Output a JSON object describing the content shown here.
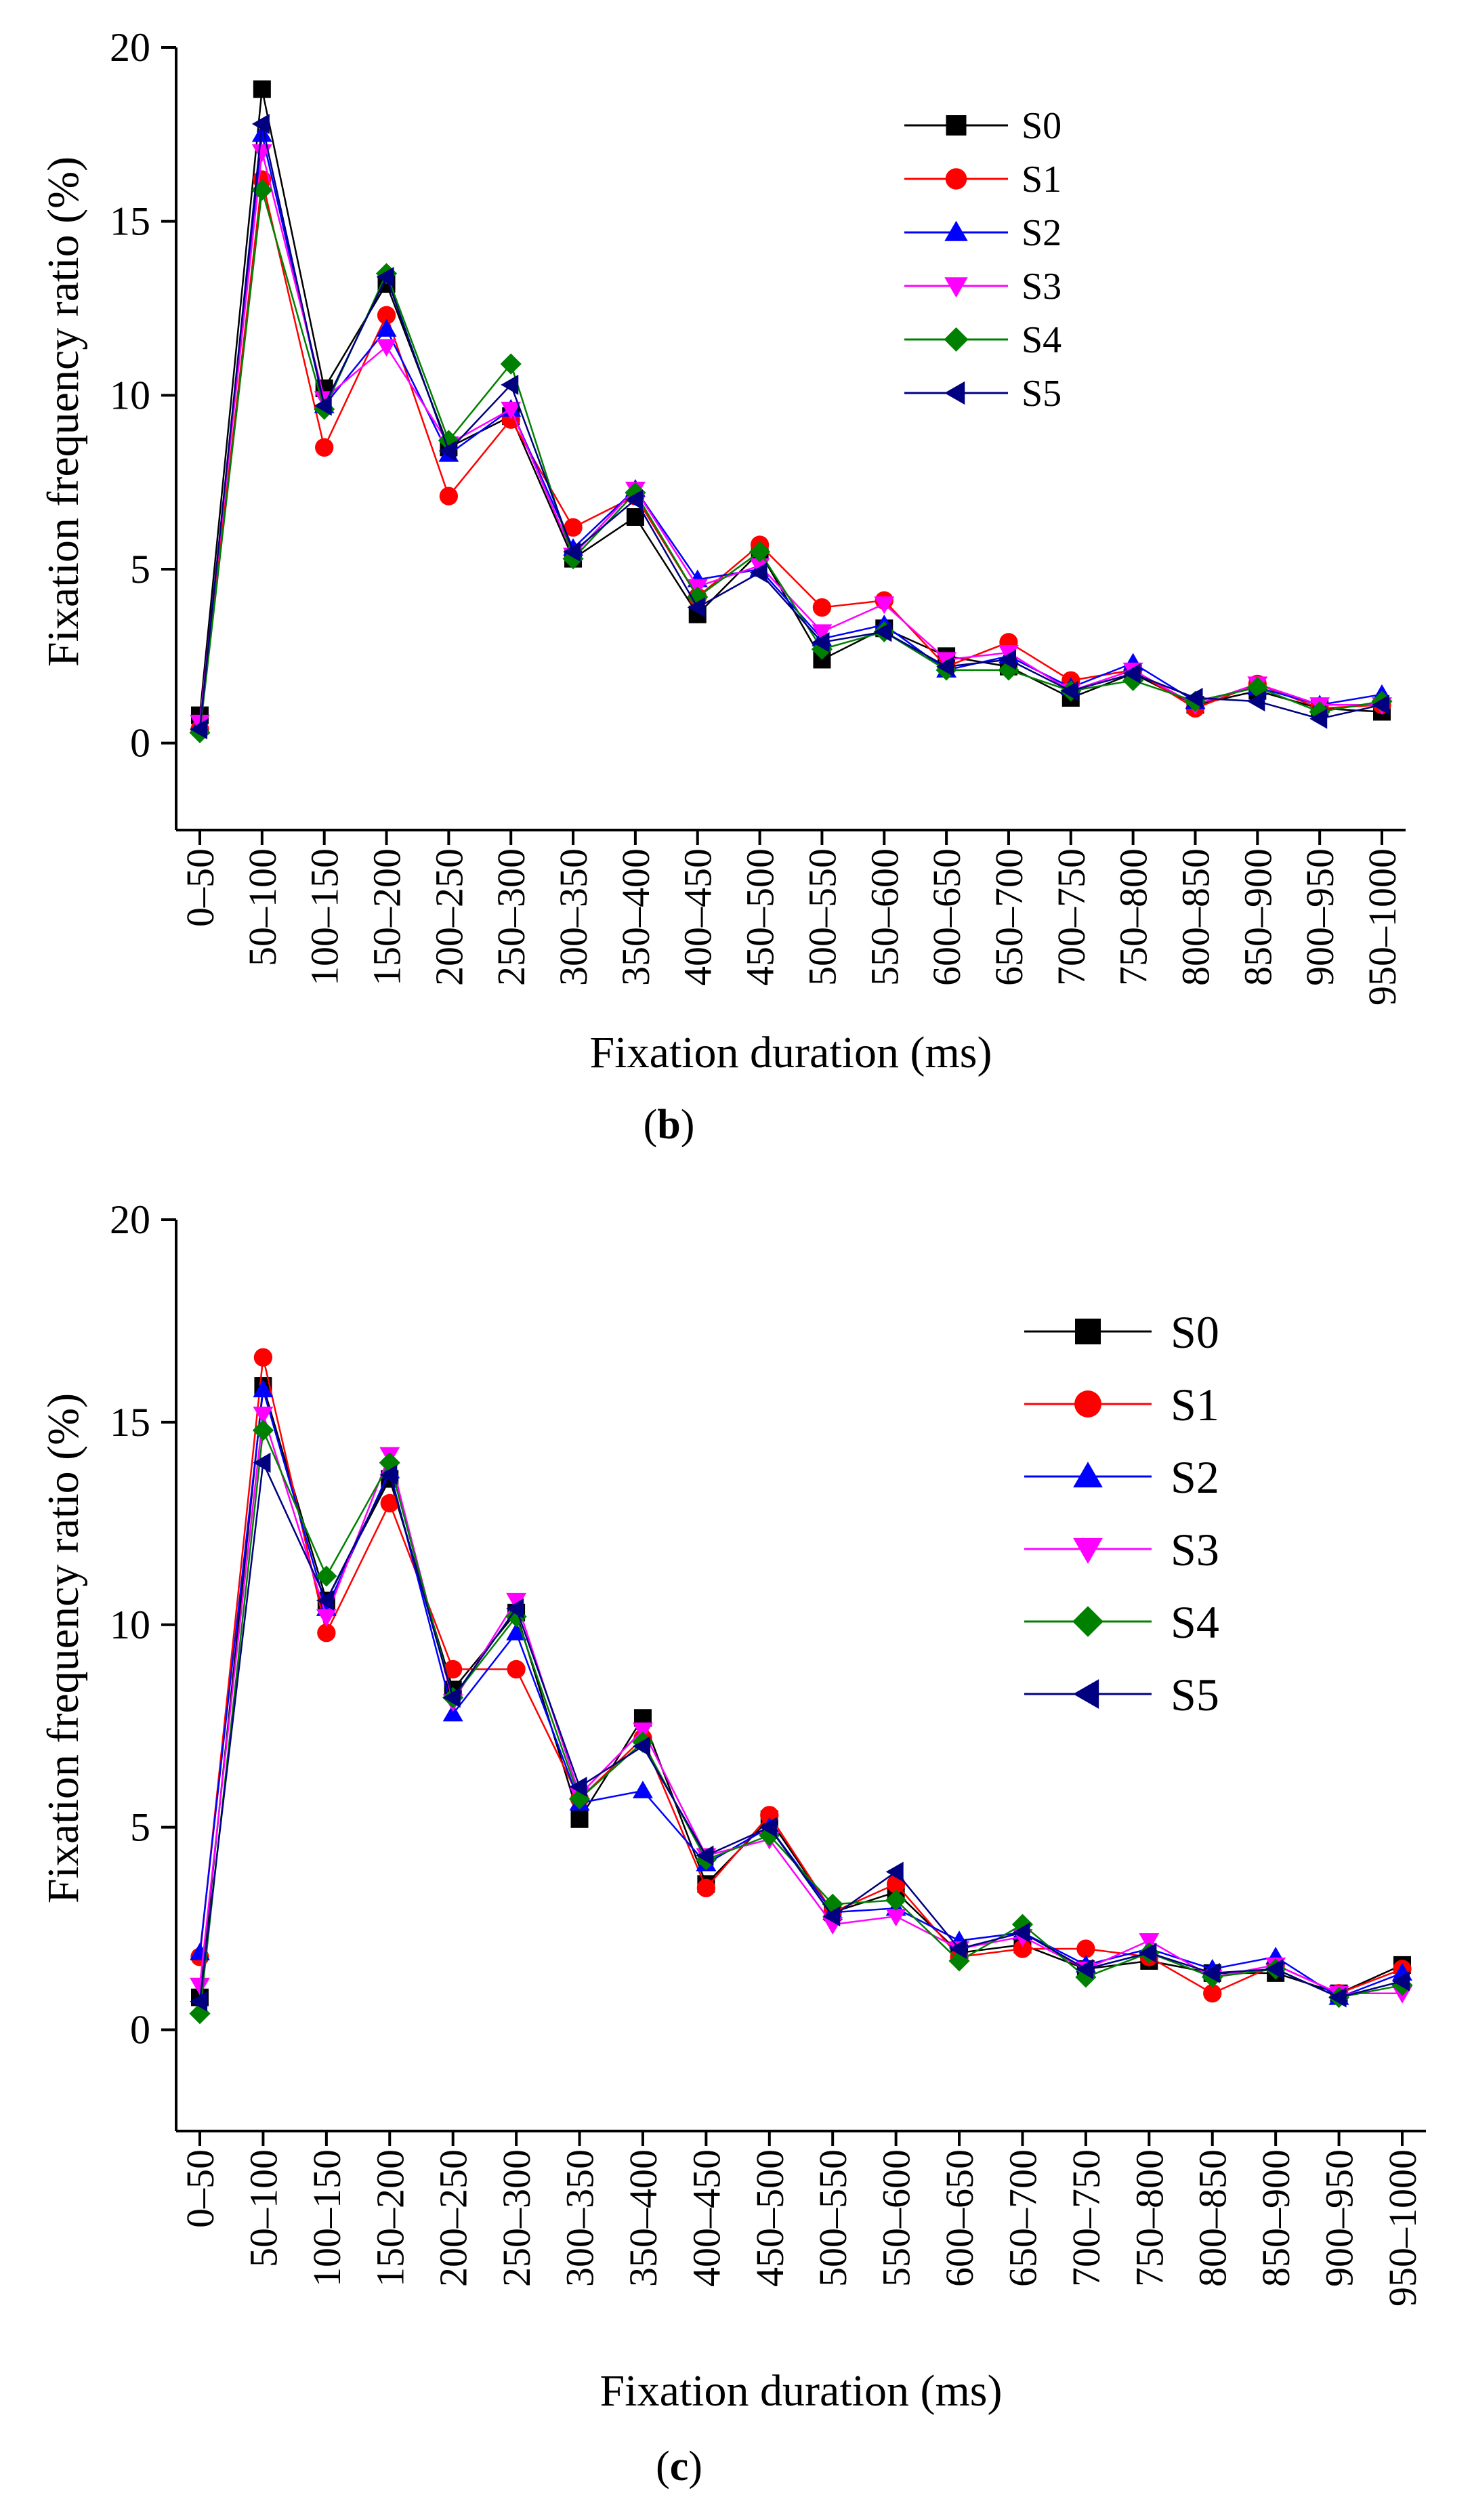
{
  "figure": {
    "colors": {
      "S0": "#000000",
      "S1": "#ff0000",
      "S2": "#0000ff",
      "S3": "#ff00ff",
      "S4": "#008000",
      "S5": "#000080"
    },
    "markers": {
      "S0": "square",
      "S1": "circle",
      "S2": "triangle-up",
      "S3": "triangle-down",
      "S4": "diamond",
      "S5": "triangle-left"
    }
  },
  "chart_data": [
    {
      "type": "line",
      "panel_label": "b",
      "xlabel": "Fixation duration (ms)",
      "ylabel": "Fixation frequency ratio (%)",
      "ylim": [
        -2.5,
        20
      ],
      "yticks": [
        0,
        5,
        10,
        15,
        20
      ],
      "legend_position": "top-right",
      "categories": [
        "0–50",
        "50–100",
        "100–150",
        "150–200",
        "200–250",
        "250–300",
        "300–350",
        "350–400",
        "400–450",
        "450–500",
        "500–550",
        "550–600",
        "600–650",
        "650–700",
        "700–750",
        "750–800",
        "800–850",
        "850–900",
        "900–950",
        "950–1000"
      ],
      "series": [
        {
          "name": "S0",
          "values": [
            0.8,
            18.8,
            10.2,
            13.2,
            8.5,
            9.4,
            5.3,
            6.5,
            3.7,
            5.5,
            2.4,
            3.3,
            2.5,
            2.2,
            1.3,
            2.0,
            1.1,
            1.5,
            1.0,
            0.9
          ]
        },
        {
          "name": "S1",
          "values": [
            0.4,
            16.2,
            8.5,
            12.3,
            7.1,
            9.3,
            6.2,
            7.1,
            4.2,
            5.7,
            3.9,
            4.1,
            2.2,
            2.9,
            1.8,
            2.1,
            1.0,
            1.7,
            1.0,
            1.1
          ]
        },
        {
          "name": "S2",
          "values": [
            0.5,
            17.5,
            9.7,
            11.9,
            8.3,
            9.6,
            5.6,
            7.3,
            4.7,
            5.0,
            3.0,
            3.4,
            2.1,
            2.5,
            1.6,
            2.3,
            1.2,
            1.6,
            1.1,
            1.4
          ]
        },
        {
          "name": "S3",
          "values": [
            0.6,
            17.0,
            9.9,
            11.4,
            8.6,
            9.6,
            5.4,
            7.3,
            4.5,
            5.1,
            3.2,
            4.0,
            2.4,
            2.6,
            1.5,
            2.1,
            1.1,
            1.7,
            1.1,
            1.1
          ]
        },
        {
          "name": "S4",
          "values": [
            0.3,
            15.9,
            9.6,
            13.5,
            8.7,
            10.9,
            5.3,
            7.2,
            4.2,
            5.5,
            2.7,
            3.2,
            2.1,
            2.1,
            1.5,
            1.8,
            1.2,
            1.6,
            0.9,
            1.2
          ]
        },
        {
          "name": "S5",
          "values": [
            0.4,
            17.8,
            9.7,
            13.4,
            8.4,
            10.3,
            5.5,
            7.0,
            3.9,
            4.9,
            2.9,
            3.2,
            2.2,
            2.4,
            1.5,
            2.0,
            1.3,
            1.2,
            0.7,
            1.1
          ]
        }
      ]
    },
    {
      "type": "line",
      "panel_label": "c",
      "xlabel": "Fixation duration (ms)",
      "ylabel": "Fixation frequency ratio (%)",
      "ylim": [
        -2.5,
        20
      ],
      "yticks": [
        0,
        5,
        10,
        15,
        20
      ],
      "legend_position": "top-right",
      "categories": [
        "0–50",
        "50–100",
        "100–150",
        "150–200",
        "200–250",
        "250–300",
        "300–350",
        "350–400",
        "400–450",
        "450–500",
        "500–550",
        "550–600",
        "600–650",
        "650–700",
        "700–750",
        "750–800",
        "800–850",
        "850–900",
        "900–950",
        "950–1000"
      ],
      "series": [
        {
          "name": "S0",
          "values": [
            0.8,
            15.9,
            10.6,
            13.6,
            8.4,
            10.3,
            5.2,
            7.7,
            3.6,
            5.2,
            2.9,
            3.4,
            1.9,
            2.1,
            1.5,
            1.7,
            1.4,
            1.4,
            0.9,
            1.6
          ]
        },
        {
          "name": "S1",
          "values": [
            1.8,
            16.6,
            9.8,
            13.0,
            8.9,
            8.9,
            5.7,
            7.2,
            3.5,
            5.3,
            2.9,
            3.6,
            1.8,
            2.0,
            2.0,
            1.8,
            0.9,
            1.6,
            0.9,
            1.5
          ]
        },
        {
          "name": "S2",
          "values": [
            1.9,
            15.8,
            10.4,
            13.8,
            7.8,
            9.8,
            5.6,
            5.9,
            4.1,
            5.0,
            2.9,
            3.0,
            2.2,
            2.4,
            1.6,
            2.0,
            1.5,
            1.8,
            0.8,
            1.4
          ]
        },
        {
          "name": "S3",
          "values": [
            1.1,
            15.2,
            10.2,
            14.2,
            8.1,
            10.6,
            5.8,
            7.4,
            4.3,
            4.7,
            2.6,
            2.8,
            2.0,
            2.3,
            1.5,
            2.2,
            1.3,
            1.6,
            0.9,
            0.9
          ]
        },
        {
          "name": "S4",
          "values": [
            0.4,
            14.8,
            11.2,
            14.0,
            8.2,
            10.2,
            5.7,
            7.1,
            4.2,
            4.8,
            3.1,
            3.2,
            1.7,
            2.6,
            1.3,
            1.9,
            1.3,
            1.5,
            0.8,
            1.1
          ]
        },
        {
          "name": "S5",
          "values": [
            0.7,
            14.0,
            10.6,
            13.7,
            8.2,
            10.4,
            6.0,
            7.0,
            4.3,
            5.0,
            2.8,
            3.9,
            2.0,
            2.4,
            1.5,
            1.9,
            1.4,
            1.5,
            0.8,
            1.2
          ]
        }
      ]
    }
  ]
}
